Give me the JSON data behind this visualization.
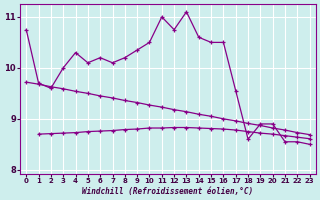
{
  "xlabel": "Windchill (Refroidissement éolien,°C)",
  "background_color": "#ceeeed",
  "line_color": "#880088",
  "xlim": [
    -0.5,
    23.5
  ],
  "ylim": [
    7.92,
    11.25
  ],
  "yticks": [
    8,
    9,
    10,
    11
  ],
  "xticks": [
    0,
    1,
    2,
    3,
    4,
    5,
    6,
    7,
    8,
    9,
    10,
    11,
    12,
    13,
    14,
    15,
    16,
    17,
    18,
    19,
    20,
    21,
    22,
    23
  ],
  "series1_x": [
    0,
    1,
    2,
    3,
    4,
    5,
    6,
    7,
    8,
    9,
    10,
    11,
    12,
    13,
    14,
    15,
    16,
    17,
    18,
    19,
    20,
    21,
    22,
    23
  ],
  "series1_y": [
    10.75,
    9.7,
    9.6,
    10.0,
    10.3,
    10.1,
    10.2,
    10.1,
    10.2,
    10.35,
    10.5,
    11.0,
    10.75,
    11.1,
    10.6,
    10.5,
    10.5,
    9.55,
    8.6,
    8.9,
    8.9,
    8.55,
    8.55,
    8.5
  ],
  "series2_x": [
    0,
    1,
    2,
    3,
    4,
    5,
    6,
    7,
    8,
    9,
    10,
    11,
    12,
    13,
    14,
    15,
    16,
    17,
    18,
    19,
    20,
    21,
    22,
    23
  ],
  "series2_y": [
    9.72,
    9.68,
    9.63,
    9.59,
    9.54,
    9.5,
    9.45,
    9.41,
    9.36,
    9.32,
    9.27,
    9.23,
    9.18,
    9.14,
    9.09,
    9.05,
    9.0,
    8.96,
    8.91,
    8.87,
    8.82,
    8.78,
    8.73,
    8.69
  ],
  "series3_x": [
    1,
    2,
    3,
    4,
    5,
    6,
    7,
    8,
    9,
    10,
    11,
    12,
    13,
    14,
    15,
    16,
    17,
    18,
    19,
    20,
    21,
    22,
    23
  ],
  "series3_y": [
    8.7,
    8.71,
    8.72,
    8.73,
    8.75,
    8.76,
    8.77,
    8.79,
    8.8,
    8.82,
    8.82,
    8.83,
    8.83,
    8.82,
    8.81,
    8.8,
    8.78,
    8.75,
    8.72,
    8.7,
    8.67,
    8.64,
    8.61
  ]
}
